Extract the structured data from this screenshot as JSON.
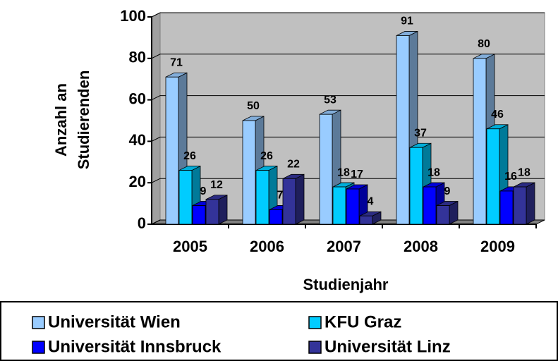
{
  "chart_data": {
    "type": "bar3d",
    "y_label": [
      "Anzahl an",
      "Studierenden"
    ],
    "x_label": "Studienjahr",
    "categories": [
      "2005",
      "2006",
      "2007",
      "2008",
      "2009"
    ],
    "series": [
      {
        "name": "Universität Wien",
        "color": "#99ccff",
        "values": [
          71,
          50,
          53,
          91,
          80
        ]
      },
      {
        "name": "KFU Graz",
        "color": "#00ccff",
        "values": [
          26,
          26,
          18,
          37,
          46
        ]
      },
      {
        "name": "Universität Innsbruck",
        "color": "#0000ff",
        "values": [
          9,
          7,
          17,
          18,
          16
        ]
      },
      {
        "name": "Universität Linz",
        "color": "#333399",
        "values": [
          12,
          22,
          4,
          9,
          18
        ]
      }
    ],
    "ylim": [
      0,
      100
    ],
    "yticks": [
      0,
      20,
      40,
      60,
      80,
      100
    ],
    "grid": true,
    "legend": "bottom"
  }
}
